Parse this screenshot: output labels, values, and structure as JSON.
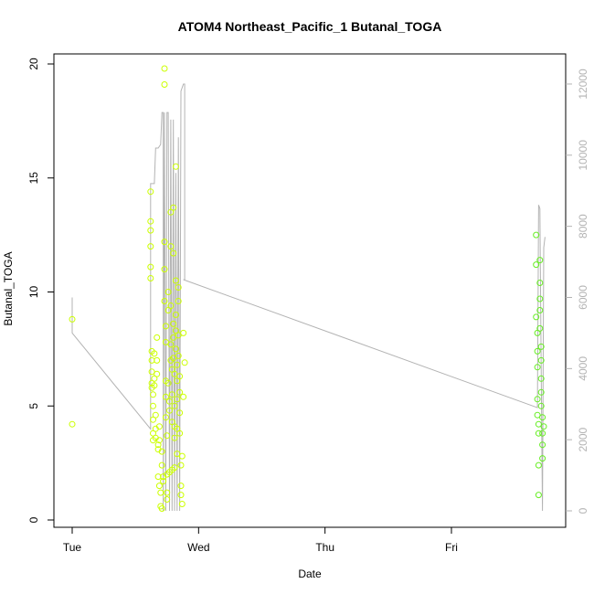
{
  "chart_data": {
    "type": "scatter",
    "title": "ATOM4 Northeast_Pacific_1 Butanal_TOGA",
    "xlabel": "Date",
    "ylabel": "Butanal_TOGA",
    "x_ticks": [
      "Tue",
      "Wed",
      "Thu",
      "Fri"
    ],
    "ylim": [
      0,
      20
    ],
    "y_ticks": [
      "0",
      "5",
      "10",
      "15",
      "20"
    ],
    "y2lim": [
      0,
      12000
    ],
    "y2_ticks": [
      "0",
      "2000",
      "4000",
      "6000",
      "8000",
      "10000",
      "12000"
    ],
    "grid": false,
    "colors": {
      "points_early": "#ccff00",
      "points_late": "#66ee22",
      "line": "#b3b3b3",
      "axis": "#000000",
      "axis_right": "#b3b3b3"
    },
    "series": [
      {
        "values": [
          [
            0.0,
            8.8
          ],
          [
            0.0,
            4.2
          ],
          [
            0.62,
            14.4
          ],
          [
            0.62,
            13.1
          ],
          [
            0.62,
            12.7
          ],
          [
            0.62,
            12.0
          ],
          [
            0.62,
            11.1
          ],
          [
            0.62,
            10.6
          ],
          [
            0.63,
            7.4
          ],
          [
            0.63,
            7.0
          ],
          [
            0.63,
            6.5
          ],
          [
            0.63,
            6.0
          ],
          [
            0.63,
            5.8
          ],
          [
            0.64,
            5.5
          ],
          [
            0.64,
            5.0
          ],
          [
            0.64,
            4.4
          ],
          [
            0.64,
            3.8
          ],
          [
            0.64,
            3.5
          ],
          [
            0.65,
            7.3
          ],
          [
            0.65,
            6.2
          ],
          [
            0.65,
            5.9
          ],
          [
            0.66,
            4.6
          ],
          [
            0.66,
            4.0
          ],
          [
            0.66,
            3.6
          ],
          [
            0.67,
            8.0
          ],
          [
            0.67,
            7.0
          ],
          [
            0.67,
            6.4
          ],
          [
            0.68,
            3.3
          ],
          [
            0.68,
            3.1
          ],
          [
            0.68,
            1.9
          ],
          [
            0.69,
            4.1
          ],
          [
            0.69,
            3.5
          ],
          [
            0.69,
            1.5
          ],
          [
            0.7,
            1.2
          ],
          [
            0.7,
            0.6
          ],
          [
            0.71,
            0.5
          ],
          [
            0.71,
            3.0
          ],
          [
            0.71,
            2.4
          ],
          [
            0.72,
            1.9
          ],
          [
            0.72,
            1.7
          ],
          [
            0.73,
            19.8
          ],
          [
            0.73,
            19.1
          ],
          [
            0.73,
            12.2
          ],
          [
            0.73,
            11.0
          ],
          [
            0.73,
            9.6
          ],
          [
            0.74,
            8.5
          ],
          [
            0.74,
            7.8
          ],
          [
            0.74,
            6.1
          ],
          [
            0.74,
            5.4
          ],
          [
            0.74,
            4.5
          ],
          [
            0.75,
            3.7
          ],
          [
            0.75,
            2.0
          ],
          [
            0.75,
            1.2
          ],
          [
            0.75,
            0.9
          ],
          [
            0.76,
            10.0
          ],
          [
            0.76,
            9.2
          ],
          [
            0.76,
            6.0
          ],
          [
            0.77,
            5.2
          ],
          [
            0.77,
            4.8
          ],
          [
            0.77,
            2.1
          ],
          [
            0.78,
            13.5
          ],
          [
            0.78,
            12.0
          ],
          [
            0.78,
            9.4
          ],
          [
            0.78,
            7.7
          ],
          [
            0.78,
            7.0
          ],
          [
            0.79,
            6.6
          ],
          [
            0.79,
            5.5
          ],
          [
            0.79,
            4.3
          ],
          [
            0.79,
            2.2
          ],
          [
            0.8,
            13.7
          ],
          [
            0.8,
            11.7
          ],
          [
            0.8,
            8.6
          ],
          [
            0.8,
            8.0
          ],
          [
            0.8,
            7.1
          ],
          [
            0.81,
            6.4
          ],
          [
            0.81,
            5.0
          ],
          [
            0.81,
            4.1
          ],
          [
            0.81,
            3.6
          ],
          [
            0.81,
            2.3
          ],
          [
            0.82,
            15.5
          ],
          [
            0.82,
            10.5
          ],
          [
            0.82,
            9.0
          ],
          [
            0.82,
            8.3
          ],
          [
            0.82,
            7.5
          ],
          [
            0.83,
            6.8
          ],
          [
            0.83,
            6.1
          ],
          [
            0.83,
            5.3
          ],
          [
            0.83,
            4.0
          ],
          [
            0.83,
            2.9
          ],
          [
            0.84,
            10.2
          ],
          [
            0.84,
            9.6
          ],
          [
            0.84,
            8.1
          ],
          [
            0.84,
            7.2
          ],
          [
            0.85,
            6.3
          ],
          [
            0.85,
            5.6
          ],
          [
            0.85,
            4.7
          ],
          [
            0.85,
            3.8
          ],
          [
            0.86,
            2.4
          ],
          [
            0.86,
            1.5
          ],
          [
            0.86,
            1.1
          ],
          [
            0.87,
            0.7
          ],
          [
            0.87,
            2.8
          ],
          [
            0.88,
            5.4
          ],
          [
            0.88,
            8.2
          ],
          [
            0.89,
            6.9
          ],
          [
            3.67,
            12.5
          ],
          [
            3.67,
            11.2
          ],
          [
            3.67,
            8.9
          ],
          [
            3.68,
            8.2
          ],
          [
            3.68,
            7.4
          ],
          [
            3.68,
            6.7
          ],
          [
            3.68,
            5.3
          ],
          [
            3.68,
            4.6
          ],
          [
            3.69,
            4.2
          ],
          [
            3.69,
            3.8
          ],
          [
            3.69,
            2.4
          ],
          [
            3.69,
            1.1
          ],
          [
            3.7,
            11.4
          ],
          [
            3.7,
            10.4
          ],
          [
            3.7,
            9.7
          ],
          [
            3.7,
            9.2
          ],
          [
            3.7,
            8.4
          ],
          [
            3.71,
            7.6
          ],
          [
            3.71,
            7.0
          ],
          [
            3.71,
            6.2
          ],
          [
            3.71,
            5.6
          ],
          [
            3.71,
            5.0
          ],
          [
            3.72,
            4.5
          ],
          [
            3.72,
            3.8
          ],
          [
            3.72,
            3.3
          ],
          [
            3.72,
            2.7
          ],
          [
            3.73,
            4.1
          ]
        ]
      },
      {
        "axis": "right",
        "values": [
          [
            0.0,
            6000
          ],
          [
            0.0,
            5000
          ],
          [
            0.62,
            2300
          ],
          [
            0.62,
            9200
          ],
          [
            0.64,
            9200
          ],
          [
            0.65,
            9200
          ],
          [
            0.66,
            10200
          ],
          [
            0.68,
            10200
          ],
          [
            0.7,
            10300
          ],
          [
            0.71,
            11200
          ],
          [
            0.72,
            11200
          ],
          [
            0.72,
            0
          ],
          [
            0.73,
            11200
          ],
          [
            0.74,
            0
          ],
          [
            0.75,
            11200
          ],
          [
            0.76,
            11200
          ],
          [
            0.77,
            0
          ],
          [
            0.78,
            11000
          ],
          [
            0.79,
            0
          ],
          [
            0.8,
            11000
          ],
          [
            0.81,
            0
          ],
          [
            0.82,
            9500
          ],
          [
            0.83,
            0
          ],
          [
            0.84,
            10500
          ],
          [
            0.85,
            0
          ],
          [
            0.86,
            11800
          ],
          [
            0.88,
            12000
          ],
          [
            0.89,
            12000
          ],
          [
            0.89,
            6500
          ],
          [
            0.88,
            6500
          ],
          [
            3.68,
            2900
          ],
          [
            3.69,
            8600
          ],
          [
            3.7,
            8500
          ],
          [
            3.71,
            4000
          ],
          [
            3.72,
            0
          ],
          [
            3.73,
            7400
          ],
          [
            3.74,
            7700
          ]
        ]
      }
    ]
  }
}
